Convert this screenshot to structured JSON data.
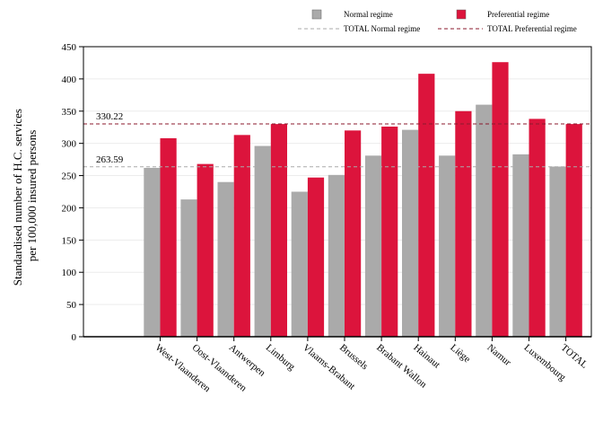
{
  "chart_data": {
    "type": "bar",
    "categories": [
      "West-Vlaanderen",
      "Oost-Vlaanderen",
      "Antwerpen",
      "Limburg",
      "Vlaams-Brabant",
      "Brussels",
      "Brabant Wallon",
      "Hainaut",
      "Liège",
      "Namur",
      "Luxembourg",
      "TOTAL"
    ],
    "series": [
      {
        "name": "Normal regime",
        "color": "#aaaaaa",
        "values": [
          262,
          213,
          240,
          296,
          225,
          251,
          281,
          321,
          281,
          360,
          283,
          264
        ]
      },
      {
        "name": "Preferential regime",
        "color": "#dc143c",
        "values": [
          308,
          268,
          313,
          330,
          247,
          320,
          326,
          408,
          350,
          426,
          338,
          330
        ]
      }
    ],
    "reference_lines": [
      {
        "name": "TOTAL Normal regime",
        "value": 263.59,
        "label": "263.59",
        "color": "#aaaaaa",
        "style": "dashed"
      },
      {
        "name": "TOTAL Preferential regime",
        "value": 330.22,
        "label": "330.22",
        "color": "#8b1a2e",
        "style": "dashed"
      }
    ],
    "ylabel_lines": [
      "Standardised number of H.C. services",
      "per 100,000 insured persons"
    ],
    "xlabel": "",
    "title": "",
    "ylim": [
      0,
      450
    ],
    "yticks": [
      "0",
      "50",
      "100",
      "150",
      "200",
      "250",
      "300",
      "350",
      "400",
      "450"
    ],
    "grid": true,
    "legend_position": "top-right"
  }
}
